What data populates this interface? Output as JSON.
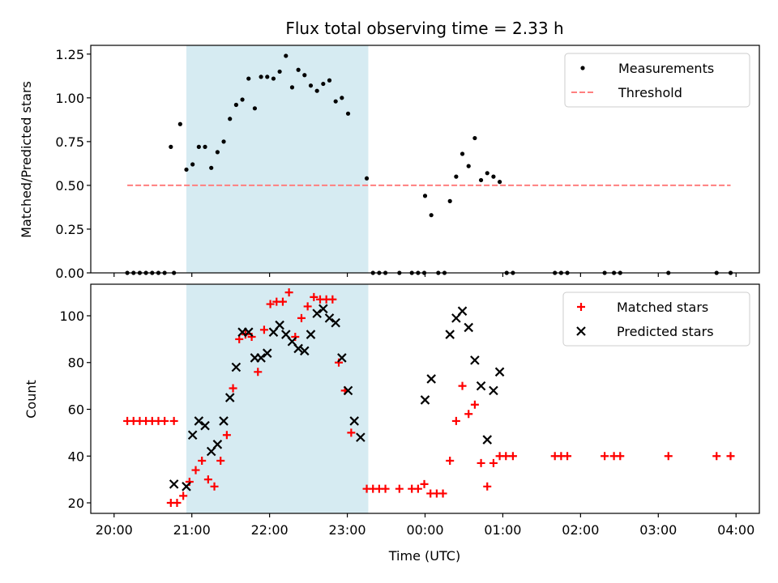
{
  "title": "Flux total observing time = 2.33 h",
  "chart_data": [
    {
      "type": "scatter",
      "title": "Flux total observing time = 2.33 h",
      "xlabel": "",
      "ylabel": "Matched/Predicted stars",
      "x_unit": "hours since 20:00 UTC",
      "xlim": [
        -0.3,
        8.3
      ],
      "ylim": [
        0,
        1.3
      ],
      "yticks": [
        0,
        0.25,
        0.5,
        0.75,
        1.0,
        1.25
      ],
      "ytick_labels": [
        "0.00",
        "0.25",
        "0.50",
        "0.75",
        "1.00",
        "1.25"
      ],
      "xticks": [
        0,
        1,
        2,
        3,
        4,
        5,
        6,
        7,
        8
      ],
      "shaded_region": {
        "x0": 0.93,
        "x1": 3.27,
        "color": "#add8e6"
      },
      "legend_position": "top-right",
      "series": [
        {
          "name": "Measurements",
          "marker": "dot",
          "color": "#000000",
          "points": [
            [
              0.17,
              0
            ],
            [
              0.25,
              0
            ],
            [
              0.33,
              0
            ],
            [
              0.41,
              0
            ],
            [
              0.49,
              0
            ],
            [
              0.57,
              0
            ],
            [
              0.65,
              0
            ],
            [
              0.77,
              0
            ],
            [
              0.73,
              0.72
            ],
            [
              0.85,
              0.85
            ],
            [
              0.93,
              0.59
            ],
            [
              1.01,
              0.62
            ],
            [
              1.09,
              0.72
            ],
            [
              1.17,
              0.72
            ],
            [
              1.25,
              0.6
            ],
            [
              1.33,
              0.69
            ],
            [
              1.41,
              0.75
            ],
            [
              1.49,
              0.88
            ],
            [
              1.57,
              0.96
            ],
            [
              1.65,
              0.99
            ],
            [
              1.73,
              1.11
            ],
            [
              1.81,
              0.94
            ],
            [
              1.89,
              1.12
            ],
            [
              1.97,
              1.12
            ],
            [
              2.05,
              1.11
            ],
            [
              2.13,
              1.15
            ],
            [
              2.21,
              1.24
            ],
            [
              2.29,
              1.06
            ],
            [
              2.37,
              1.16
            ],
            [
              2.45,
              1.13
            ],
            [
              2.53,
              1.07
            ],
            [
              2.61,
              1.04
            ],
            [
              2.69,
              1.08
            ],
            [
              2.77,
              1.1
            ],
            [
              2.85,
              0.98
            ],
            [
              2.93,
              1.0
            ],
            [
              3.01,
              0.91
            ],
            [
              3.25,
              0.54
            ],
            [
              3.33,
              0
            ],
            [
              3.41,
              0
            ],
            [
              3.49,
              0
            ],
            [
              3.67,
              0
            ],
            [
              3.83,
              0
            ],
            [
              3.91,
              0
            ],
            [
              3.99,
              0
            ],
            [
              4.17,
              0
            ],
            [
              4.25,
              0
            ],
            [
              4.0,
              0.44
            ],
            [
              4.08,
              0.33
            ],
            [
              4.32,
              0.41
            ],
            [
              4.4,
              0.55
            ],
            [
              4.48,
              0.68
            ],
            [
              4.56,
              0.61
            ],
            [
              4.64,
              0.77
            ],
            [
              4.72,
              0.53
            ],
            [
              4.8,
              0.57
            ],
            [
              4.88,
              0.55
            ],
            [
              4.96,
              0.52
            ],
            [
              5.05,
              0
            ],
            [
              5.13,
              0
            ],
            [
              5.67,
              0
            ],
            [
              5.75,
              0
            ],
            [
              5.83,
              0
            ],
            [
              6.31,
              0
            ],
            [
              6.43,
              0
            ],
            [
              6.51,
              0
            ],
            [
              7.13,
              0
            ],
            [
              7.75,
              0
            ],
            [
              7.93,
              0
            ]
          ]
        },
        {
          "name": "Threshold",
          "line_style": "dashed",
          "color": "#ff7f7f",
          "points": [
            [
              0.17,
              0.5
            ],
            [
              7.93,
              0.5
            ]
          ]
        }
      ]
    },
    {
      "type": "scatter",
      "xlabel": "Time (UTC)",
      "ylabel": "Count",
      "x_unit": "hours since 20:00 UTC",
      "xlim": [
        -0.3,
        8.3
      ],
      "ylim": [
        15.5,
        113.5
      ],
      "yticks": [
        20,
        40,
        60,
        80,
        100
      ],
      "ytick_labels": [
        "20",
        "40",
        "60",
        "80",
        "100"
      ],
      "xticks": [
        0,
        1,
        2,
        3,
        4,
        5,
        6,
        7,
        8
      ],
      "xtick_labels": [
        "20:00",
        "21:00",
        "22:00",
        "23:00",
        "00:00",
        "01:00",
        "02:00",
        "03:00",
        "04:00"
      ],
      "shaded_region": {
        "x0": 0.93,
        "x1": 3.27,
        "color": "#add8e6"
      },
      "legend_position": "top-right",
      "series": [
        {
          "name": "Matched stars",
          "marker": "plus",
          "color": "#ff0000",
          "points": [
            [
              0.17,
              55
            ],
            [
              0.25,
              55
            ],
            [
              0.33,
              55
            ],
            [
              0.41,
              55
            ],
            [
              0.49,
              55
            ],
            [
              0.57,
              55
            ],
            [
              0.65,
              55
            ],
            [
              0.77,
              55
            ],
            [
              0.73,
              20
            ],
            [
              0.81,
              20
            ],
            [
              0.89,
              23
            ],
            [
              0.97,
              29
            ],
            [
              1.05,
              34
            ],
            [
              1.13,
              38
            ],
            [
              1.21,
              30
            ],
            [
              1.29,
              27
            ],
            [
              1.37,
              38
            ],
            [
              1.45,
              49
            ],
            [
              1.53,
              69
            ],
            [
              1.61,
              90
            ],
            [
              1.69,
              92
            ],
            [
              1.77,
              91
            ],
            [
              1.85,
              76
            ],
            [
              1.93,
              94
            ],
            [
              2.01,
              105
            ],
            [
              2.09,
              106
            ],
            [
              2.17,
              106
            ],
            [
              2.25,
              110
            ],
            [
              2.33,
              91
            ],
            [
              2.41,
              99
            ],
            [
              2.49,
              104
            ],
            [
              2.57,
              108
            ],
            [
              2.65,
              107
            ],
            [
              2.73,
              107
            ],
            [
              2.81,
              107
            ],
            [
              2.89,
              80
            ],
            [
              2.97,
              68
            ],
            [
              3.05,
              50
            ],
            [
              3.25,
              26
            ],
            [
              3.33,
              26
            ],
            [
              3.41,
              26
            ],
            [
              3.49,
              26
            ],
            [
              3.67,
              26
            ],
            [
              3.83,
              26
            ],
            [
              3.91,
              26
            ],
            [
              3.99,
              28
            ],
            [
              4.07,
              24
            ],
            [
              4.15,
              24
            ],
            [
              4.23,
              24
            ],
            [
              4.32,
              38
            ],
            [
              4.4,
              55
            ],
            [
              4.48,
              70
            ],
            [
              4.56,
              58
            ],
            [
              4.64,
              62
            ],
            [
              4.72,
              37
            ],
            [
              4.8,
              27
            ],
            [
              4.88,
              37
            ],
            [
              4.96,
              40
            ],
            [
              5.04,
              40
            ],
            [
              5.13,
              40
            ],
            [
              5.67,
              40
            ],
            [
              5.75,
              40
            ],
            [
              5.83,
              40
            ],
            [
              6.31,
              40
            ],
            [
              6.43,
              40
            ],
            [
              6.51,
              40
            ],
            [
              7.13,
              40
            ],
            [
              7.75,
              40
            ],
            [
              7.93,
              40
            ]
          ]
        },
        {
          "name": "Predicted stars",
          "marker": "x",
          "color": "#000000",
          "points": [
            [
              0.77,
              28
            ],
            [
              0.93,
              27
            ],
            [
              1.01,
              49
            ],
            [
              1.09,
              55
            ],
            [
              1.17,
              53
            ],
            [
              1.25,
              42
            ],
            [
              1.33,
              45
            ],
            [
              1.41,
              55
            ],
            [
              1.49,
              65
            ],
            [
              1.57,
              78
            ],
            [
              1.65,
              93
            ],
            [
              1.73,
              93
            ],
            [
              1.81,
              82
            ],
            [
              1.89,
              82
            ],
            [
              1.97,
              84
            ],
            [
              2.05,
              93
            ],
            [
              2.13,
              96
            ],
            [
              2.21,
              92
            ],
            [
              2.29,
              89
            ],
            [
              2.37,
              86
            ],
            [
              2.45,
              85
            ],
            [
              2.53,
              92
            ],
            [
              2.61,
              101
            ],
            [
              2.69,
              103
            ],
            [
              2.77,
              99
            ],
            [
              2.85,
              97
            ],
            [
              2.93,
              82
            ],
            [
              3.01,
              68
            ],
            [
              3.09,
              55
            ],
            [
              3.17,
              48
            ],
            [
              4.0,
              64
            ],
            [
              4.08,
              73
            ],
            [
              4.32,
              92
            ],
            [
              4.4,
              99
            ],
            [
              4.48,
              102
            ],
            [
              4.56,
              95
            ],
            [
              4.64,
              81
            ],
            [
              4.72,
              70
            ],
            [
              4.8,
              47
            ],
            [
              4.88,
              68
            ],
            [
              4.96,
              76
            ]
          ]
        }
      ]
    }
  ]
}
